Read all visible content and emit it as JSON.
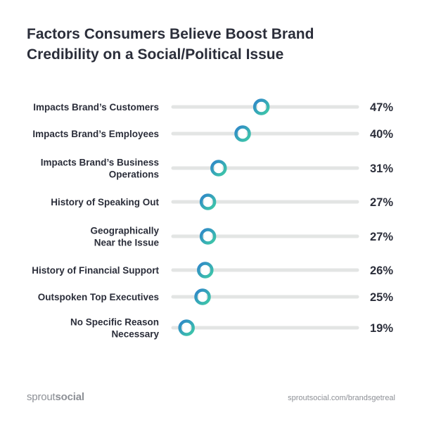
{
  "chart_data": {
    "type": "dot",
    "title_lines": [
      "Factors Consumers Believe Boost Brand",
      "Credibility on a Social/Political Issue"
    ],
    "categories": [
      [
        "Impacts Brand’s Customers"
      ],
      [
        "Impacts Brand’s Employees"
      ],
      [
        "Impacts Brand’s Business",
        "Operations"
      ],
      [
        "History of Speaking Out"
      ],
      [
        "Geographically",
        "Near the Issue"
      ],
      [
        "History of Financial Support"
      ],
      [
        "Outspoken Top Executives"
      ],
      [
        "No Specific Reason",
        "Necessary"
      ]
    ],
    "values": [
      47,
      40,
      31,
      27,
      27,
      26,
      25,
      19
    ],
    "value_labels": [
      "47%",
      "40%",
      "31%",
      "27%",
      "27%",
      "26%",
      "25%",
      "19%"
    ],
    "unit": "%",
    "grid": false,
    "colors": {
      "track": "#e3e5e4",
      "dot_ring_start": "#2f86c9",
      "dot_ring_end": "#3ec9a7",
      "dot_center": "#ffffff",
      "text": "#2b2e3a"
    }
  },
  "footer": {
    "brand_light": "sprout",
    "brand_bold": "social",
    "url": "sproutsocial.com/brandsgetreal"
  }
}
